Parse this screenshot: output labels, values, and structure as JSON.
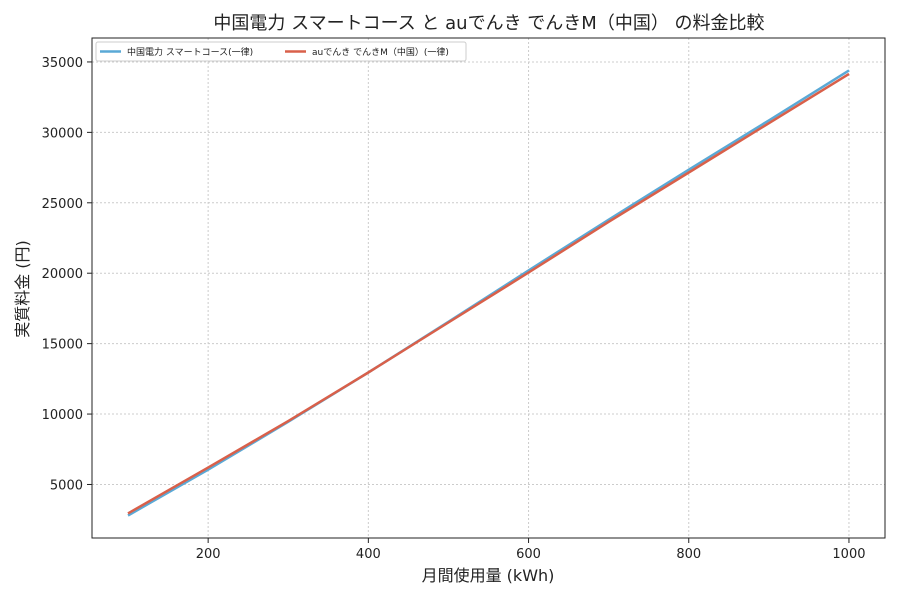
{
  "chart_data": {
    "type": "line",
    "title": "中国電力 スマートコース と auでんき でんきM（中国） の料金比較",
    "xlabel": "月間使用量 (kWh)",
    "ylabel": "実質料金 (円)",
    "xlim": [
      55,
      1045
    ],
    "ylim": [
      1200,
      36700
    ],
    "xticks": [
      200,
      400,
      600,
      800,
      1000
    ],
    "yticks": [
      5000,
      10000,
      15000,
      20000,
      25000,
      30000,
      35000
    ],
    "grid": true,
    "legend_position": "top-left",
    "x": [
      100,
      200,
      300,
      400,
      500,
      600,
      700,
      800,
      900,
      1000
    ],
    "series": [
      {
        "name": "中国電力 スマートコース(一律)",
        "color": "#5aa9d6",
        "values": [
          2800,
          6050,
          9450,
          12950,
          16550,
          20200,
          23800,
          27350,
          30850,
          34400
        ]
      },
      {
        "name": "auでんき でんきM（中国）(一律)",
        "color": "#d9604a",
        "values": [
          2950,
          6200,
          9500,
          12950,
          16500,
          20050,
          23650,
          27150,
          30650,
          34150
        ]
      }
    ]
  }
}
